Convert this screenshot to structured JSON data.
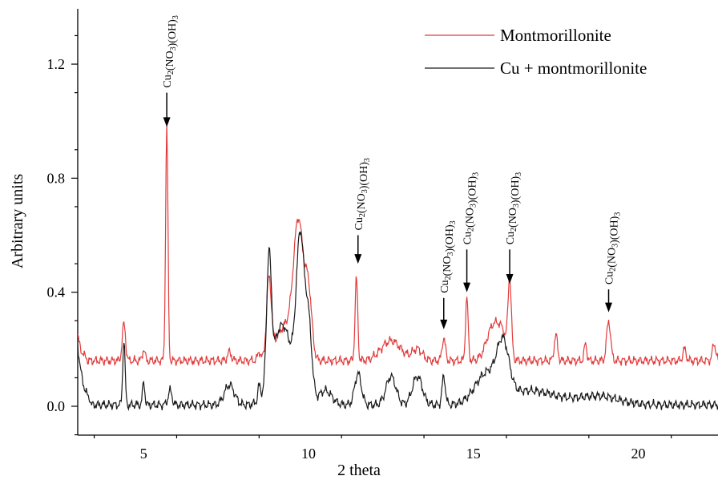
{
  "chart_data": {
    "type": "line",
    "title": "",
    "xlabel": "2 theta",
    "ylabel": "Arbitrary units",
    "xlim": [
      3,
      22.5
    ],
    "ylim": [
      -0.1,
      1.4
    ],
    "x_ticks": [
      5,
      10,
      15,
      20
    ],
    "x_tick_labels": [
      "5",
      "10",
      "15",
      "20"
    ],
    "y_ticks": [
      0.0,
      0.4,
      0.8,
      1.2
    ],
    "y_tick_labels": [
      "0.0",
      "0.4",
      "0.8",
      "1.2"
    ],
    "grid": false,
    "legend_position": "top-right",
    "series": [
      {
        "name": "Montmorillonite",
        "color": "#e23b3b",
        "baseline": 0.16,
        "rise": [
          [
            3.0,
            0.25
          ],
          [
            3.3,
            0.18
          ]
        ],
        "peaks": [
          [
            4.4,
            0.13,
            0.05
          ],
          [
            5.0,
            0.04,
            0.04
          ],
          [
            5.7,
            0.83,
            0.035
          ],
          [
            7.6,
            0.03,
            0.06
          ],
          [
            8.5,
            0.03,
            0.04
          ],
          [
            8.8,
            0.27,
            0.07
          ],
          [
            9.3,
            0.12,
            0.3
          ],
          [
            9.7,
            0.45,
            0.15
          ],
          [
            10.0,
            0.22,
            0.1
          ],
          [
            11.45,
            0.29,
            0.04
          ],
          [
            12.5,
            0.07,
            0.3
          ],
          [
            13.3,
            0.04,
            0.15
          ],
          [
            14.1,
            0.08,
            0.05
          ],
          [
            14.8,
            0.22,
            0.04
          ],
          [
            15.6,
            0.12,
            0.2
          ],
          [
            15.9,
            0.07,
            0.15
          ],
          [
            16.1,
            0.26,
            0.05
          ],
          [
            17.5,
            0.09,
            0.05
          ],
          [
            18.4,
            0.06,
            0.04
          ],
          [
            19.1,
            0.14,
            0.06
          ],
          [
            21.4,
            0.04,
            0.05
          ],
          [
            22.3,
            0.06,
            0.05
          ]
        ]
      },
      {
        "name": "Cu + montmorillonite",
        "color": "#1a1a1a",
        "baseline": 0.005,
        "rise": [
          [
            3.0,
            0.22
          ],
          [
            3.4,
            0.05
          ]
        ],
        "peaks": [
          [
            4.4,
            0.23,
            0.035
          ],
          [
            5.0,
            0.08,
            0.035
          ],
          [
            5.8,
            0.05,
            0.06
          ],
          [
            7.6,
            0.07,
            0.15
          ],
          [
            8.5,
            0.05,
            0.04
          ],
          [
            8.8,
            0.43,
            0.07
          ],
          [
            9.2,
            0.28,
            0.3
          ],
          [
            9.75,
            0.55,
            0.12
          ],
          [
            10.0,
            0.27,
            0.1
          ],
          [
            10.5,
            0.05,
            0.2
          ],
          [
            11.5,
            0.11,
            0.1
          ],
          [
            12.5,
            0.1,
            0.15
          ],
          [
            13.3,
            0.1,
            0.15
          ],
          [
            14.1,
            0.1,
            0.05
          ],
          [
            15.4,
            0.1,
            0.35
          ],
          [
            15.9,
            0.17,
            0.18
          ],
          [
            16.7,
            0.05,
            0.8
          ],
          [
            18.8,
            0.03,
            0.6
          ]
        ]
      }
    ],
    "annotations": [
      {
        "x": 5.7,
        "y_tail": 1.1,
        "y_head": 0.98
      },
      {
        "x": 11.5,
        "y_tail": 0.6,
        "y_head": 0.5
      },
      {
        "x": 14.1,
        "y_tail": 0.38,
        "y_head": 0.27
      },
      {
        "x": 14.8,
        "y_tail": 0.55,
        "y_head": 0.4
      },
      {
        "x": 16.1,
        "y_tail": 0.55,
        "y_head": 0.43
      },
      {
        "x": 19.1,
        "y_tail": 0.41,
        "y_head": 0.33
      }
    ],
    "annotation_label": {
      "main": "Cu",
      "sub1": "2",
      "mid": "(NO",
      "sub2": "3",
      "tail": ")(OH)",
      "sub3": "3"
    }
  }
}
